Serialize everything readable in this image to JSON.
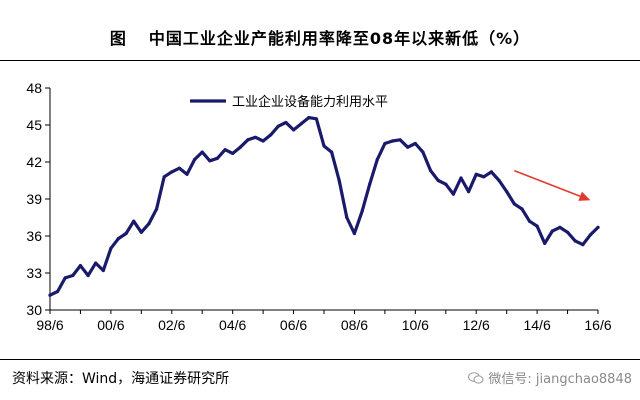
{
  "header": {
    "figure_label": "图",
    "title": "中国工业企业产能利用率降至08年以来新低（%）"
  },
  "footer": {
    "source": "资料来源：Wind，海通证券研究所",
    "watermark": "微信号: jiangchao8848",
    "watermark_icon": "wechat-icon"
  },
  "chart_data": {
    "type": "line",
    "title": "中国工业企业产能利用率降至08年以来新低（%）",
    "xlabel": "",
    "ylabel": "",
    "x_ticks": [
      "98/6",
      "00/6",
      "02/6",
      "04/6",
      "06/6",
      "08/6",
      "10/6",
      "12/6",
      "14/6",
      "16/6"
    ],
    "x_range": [
      "1998-06",
      "2016-06"
    ],
    "ylim": [
      30,
      48
    ],
    "y_ticks": [
      30,
      33,
      36,
      39,
      42,
      45,
      48
    ],
    "grid": false,
    "legend_position": "top-left",
    "series": [
      {
        "name": "工业企业设备能力利用水平",
        "color": "#1a1a6b",
        "x": [
          "1998-06",
          "1998-09",
          "1998-12",
          "1999-03",
          "1999-06",
          "1999-09",
          "1999-12",
          "2000-03",
          "2000-06",
          "2000-09",
          "2000-12",
          "2001-03",
          "2001-06",
          "2001-09",
          "2001-12",
          "2002-03",
          "2002-06",
          "2002-09",
          "2002-12",
          "2003-03",
          "2003-06",
          "2003-09",
          "2003-12",
          "2004-03",
          "2004-06",
          "2004-09",
          "2004-12",
          "2005-03",
          "2005-06",
          "2005-09",
          "2005-12",
          "2006-03",
          "2006-06",
          "2006-09",
          "2006-12",
          "2007-03",
          "2007-06",
          "2007-09",
          "2007-12",
          "2008-03",
          "2008-06",
          "2008-09",
          "2008-12",
          "2009-03",
          "2009-06",
          "2009-09",
          "2009-12",
          "2010-03",
          "2010-06",
          "2010-09",
          "2010-12",
          "2011-03",
          "2011-06",
          "2011-09",
          "2011-12",
          "2012-03",
          "2012-06",
          "2012-09",
          "2012-12",
          "2013-03",
          "2013-06",
          "2013-09",
          "2013-12",
          "2014-03",
          "2014-06",
          "2014-09",
          "2014-12",
          "2015-03",
          "2015-06",
          "2015-09",
          "2015-12",
          "2016-03",
          "2016-06"
        ],
        "values": [
          31.2,
          31.5,
          32.6,
          32.8,
          33.6,
          32.8,
          33.8,
          33.2,
          35.0,
          35.8,
          36.2,
          37.2,
          36.3,
          37.0,
          38.2,
          40.8,
          41.2,
          41.5,
          41.0,
          42.2,
          42.8,
          42.1,
          42.3,
          43.0,
          42.7,
          43.2,
          43.8,
          44.0,
          43.7,
          44.2,
          44.9,
          45.2,
          44.6,
          45.1,
          45.6,
          45.5,
          43.3,
          42.8,
          40.5,
          37.5,
          36.2,
          38.0,
          40.2,
          42.2,
          43.5,
          43.7,
          43.8,
          43.2,
          43.5,
          42.8,
          41.3,
          40.5,
          40.2,
          39.4,
          40.7,
          39.6,
          41.0,
          40.8,
          41.2,
          40.5,
          39.6,
          38.6,
          38.2,
          37.2,
          36.8,
          35.4,
          36.4,
          36.7,
          36.3,
          35.6,
          35.3,
          36.1,
          36.7
        ]
      }
    ],
    "annotations": [
      {
        "type": "arrow",
        "description": "downward trend arrow",
        "color": "#e03a2e",
        "from": [
          "2013-09",
          41.3
        ],
        "to": [
          "2016-03",
          38.9
        ]
      }
    ]
  }
}
